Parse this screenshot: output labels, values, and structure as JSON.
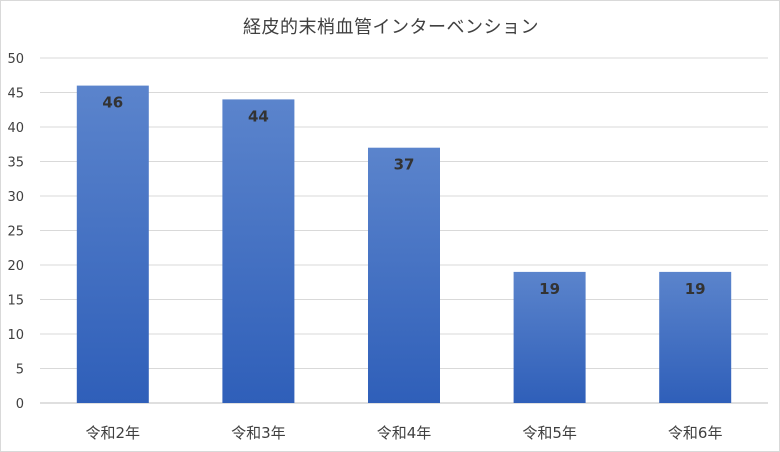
{
  "chart_data": {
    "type": "bar",
    "title": "経皮的末梢血管インターベンション",
    "categories": [
      "令和2年",
      "令和3年",
      "令和4年",
      "令和5年",
      "令和6年"
    ],
    "values": [
      46,
      44,
      37,
      19,
      19
    ],
    "ylim": [
      0,
      50
    ],
    "yticks": [
      0,
      5,
      10,
      15,
      20,
      25,
      30,
      35,
      40,
      45,
      50
    ],
    "grid": true,
    "legend": "none",
    "bar_color_top": "#5b84cc",
    "bar_color_bottom": "#2f5fb9"
  }
}
